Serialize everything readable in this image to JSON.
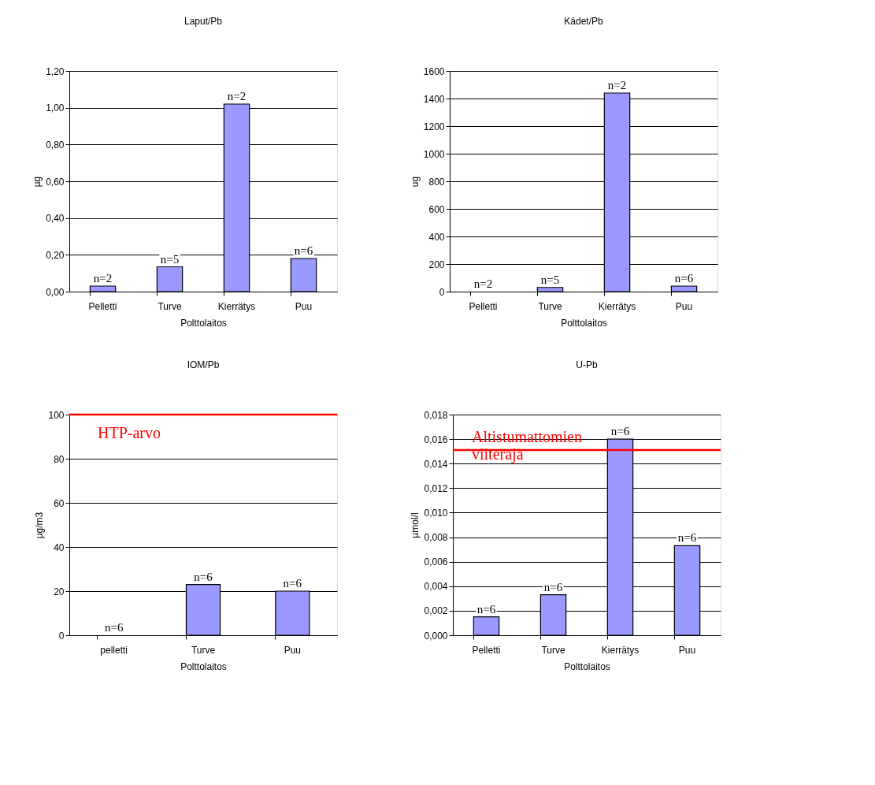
{
  "chart_data": [
    {
      "type": "bar",
      "title": "Laput/Pb",
      "xlabel": "Polttolaitos",
      "ylabel": "µg",
      "categories": [
        "Pelletti",
        "Turve",
        "Kierrätys",
        "Puu"
      ],
      "values": [
        0.03,
        0.135,
        1.02,
        0.18
      ],
      "color": "#9999ff",
      "ylim": [
        0,
        1.2
      ],
      "yticks": [
        {
          "value": 0,
          "label": "0,00"
        },
        {
          "value": 0.2,
          "label": "0,20"
        },
        {
          "value": 0.4,
          "label": "0,40"
        },
        {
          "value": 0.6,
          "label": "0,60"
        },
        {
          "value": 0.8,
          "label": "0,80"
        },
        {
          "value": 1.0,
          "label": "1,00"
        },
        {
          "value": 1.2,
          "label": "1,20"
        }
      ],
      "grid": "y",
      "annotations": [
        "n=2",
        "n=5",
        "n=2",
        "n=6"
      ]
    },
    {
      "type": "bar",
      "title": "Kädet/Pb",
      "xlabel": "Polttolaitos",
      "ylabel": "ug",
      "categories": [
        "Pelletti",
        "Turve",
        "Kierrätys",
        "Puu"
      ],
      "values": [
        null,
        30,
        1440,
        40
      ],
      "color": "#9999ff",
      "ylim": [
        0,
        1600
      ],
      "yticks": [
        0,
        200,
        400,
        600,
        800,
        1000,
        1200,
        1400,
        1600
      ],
      "grid": "y",
      "annotations": [
        "n=2",
        "n=5",
        "n=2",
        "n=6"
      ]
    },
    {
      "type": "bar",
      "title": "IOM/Pb",
      "xlabel": "Polttolaitos",
      "ylabel": "µg/m3",
      "categories": [
        "pelletti",
        "Turve",
        "Puu"
      ],
      "values": [
        null,
        23,
        20
      ],
      "color": "#9999ff",
      "ylim": [
        0,
        100
      ],
      "yticks": [
        0,
        20,
        40,
        60,
        80,
        100
      ],
      "grid": "y",
      "ref_lines": [
        {
          "axis": "y",
          "value": 100,
          "label": "HTP-arvo",
          "color": "#ff0000"
        }
      ],
      "annotations": [
        "n=6",
        "n=6",
        "n=6"
      ]
    },
    {
      "type": "bar",
      "title": "U-Pb",
      "xlabel": "Polttolaitos",
      "ylabel": "µmol/l",
      "categories": [
        "Pelletti",
        "Turve",
        "Kierrätys",
        "Puu"
      ],
      "values": [
        0.0015,
        0.0033,
        0.016,
        0.0073
      ],
      "color": "#9999ff",
      "ylim": [
        0,
        0.018
      ],
      "yticks": [
        {
          "value": 0,
          "label": "0,000"
        },
        {
          "value": 0.002,
          "label": "0,002"
        },
        {
          "value": 0.004,
          "label": "0,004"
        },
        {
          "value": 0.006,
          "label": "0,006"
        },
        {
          "value": 0.008,
          "label": "0,008"
        },
        {
          "value": 0.01,
          "label": "0,010"
        },
        {
          "value": 0.012,
          "label": "0,012"
        },
        {
          "value": 0.014,
          "label": "0,014"
        },
        {
          "value": 0.016,
          "label": "0,016"
        },
        {
          "value": 0.018,
          "label": "0,018"
        }
      ],
      "grid": "y",
      "ref_lines": [
        {
          "axis": "y",
          "value": 0.0151,
          "label": "Altistumattomien viiteraja",
          "color": "#ff0000"
        }
      ],
      "annotations": [
        "n=6",
        "n=6",
        "n=6",
        "n=6"
      ]
    }
  ]
}
